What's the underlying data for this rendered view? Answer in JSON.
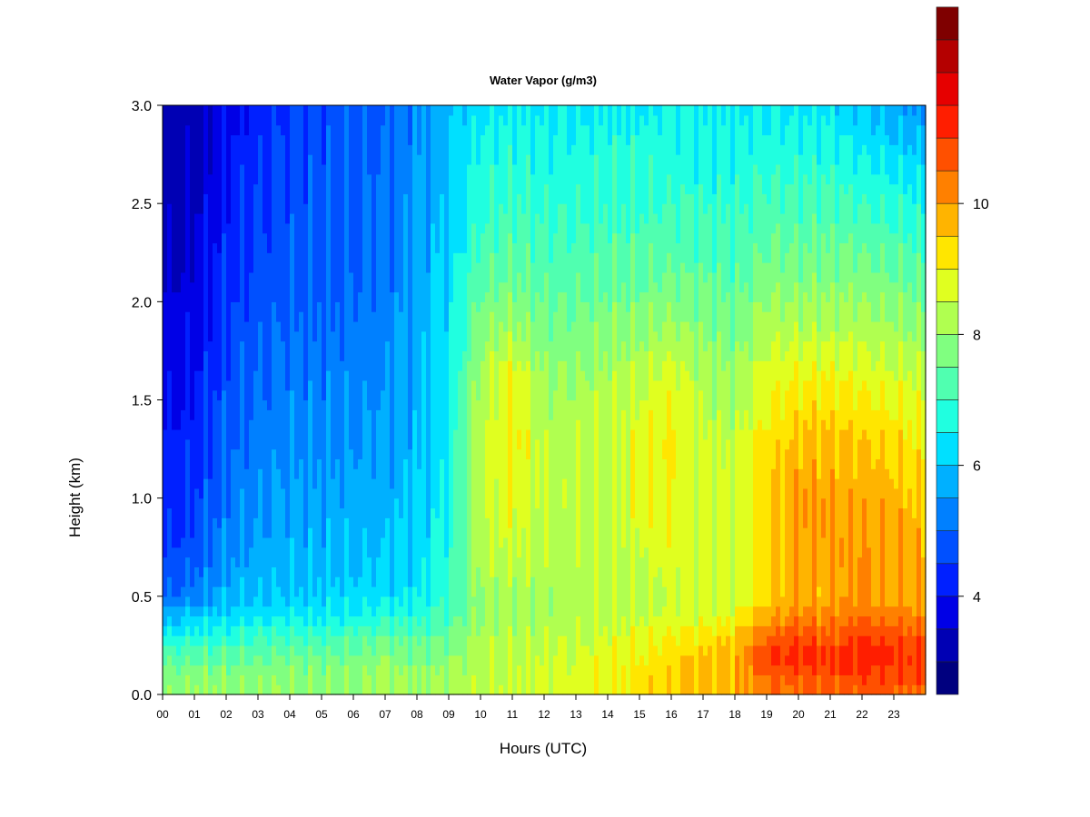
{
  "chart_data": {
    "type": "heatmap",
    "title": "Water Vapor (g/m3)",
    "xlabel": "Hours (UTC)",
    "ylabel": "Height (km)",
    "xlim": [
      0,
      24
    ],
    "ylim": [
      0.0,
      3.0
    ],
    "x_ticks": [
      "00",
      "01",
      "02",
      "03",
      "04",
      "05",
      "06",
      "07",
      "08",
      "09",
      "10",
      "11",
      "12",
      "13",
      "14",
      "15",
      "16",
      "17",
      "18",
      "19",
      "20",
      "21",
      "22",
      "23"
    ],
    "y_ticks": [
      "0.0",
      "0.5",
      "1.0",
      "1.5",
      "2.0",
      "2.5",
      "3.0"
    ],
    "colorbar": {
      "range": [
        2.5,
        11.5
      ],
      "step": 0.5,
      "tick_labels": [
        "4",
        "6",
        "8",
        "10"
      ],
      "tick_values": [
        4,
        6,
        8,
        10
      ],
      "colors": [
        "#00007F",
        "#0000B4",
        "#0000E6",
        "#0020FF",
        "#0050FF",
        "#0080FF",
        "#00B0FF",
        "#00E0FF",
        "#20FFE0",
        "#50FFB0",
        "#80FF80",
        "#B0FF50",
        "#E0FF20",
        "#FFE600",
        "#FFB400",
        "#FF8000",
        "#FF5000",
        "#FF1E00",
        "#E60000",
        "#B40000",
        "#7F0000"
      ]
    },
    "profiles": {
      "heights_km": [
        0.0,
        0.1,
        0.2,
        0.3,
        0.4,
        0.5,
        0.7,
        1.0,
        1.3,
        1.6,
        1.9,
        2.2,
        2.6,
        3.0
      ],
      "rows": [
        {
          "hour": 0.0,
          "values": [
            7.8,
            7.6,
            7.2,
            6.5,
            5.8,
            5.0,
            4.5,
            4.2,
            4.0,
            3.8,
            3.6,
            3.4,
            3.2,
            3.0
          ]
        },
        {
          "hour": 1.0,
          "values": [
            8.2,
            7.8,
            7.3,
            6.8,
            6.0,
            5.3,
            4.8,
            4.5,
            4.3,
            4.0,
            3.8,
            3.6,
            3.4,
            3.2
          ]
        },
        {
          "hour": 2.0,
          "values": [
            8.0,
            7.8,
            7.4,
            6.8,
            6.2,
            5.8,
            5.4,
            5.1,
            4.9,
            4.7,
            4.5,
            4.3,
            4.1,
            3.8
          ]
        },
        {
          "hour": 3.0,
          "values": [
            8.0,
            7.8,
            7.4,
            7.0,
            6.4,
            6.0,
            5.7,
            5.4,
            5.2,
            5.0,
            4.8,
            4.6,
            4.5,
            4.2
          ]
        },
        {
          "hour": 4.0,
          "values": [
            8.0,
            7.8,
            7.6,
            7.0,
            6.4,
            6.0,
            5.8,
            5.6,
            5.4,
            5.2,
            5.0,
            4.8,
            4.7,
            4.5
          ]
        },
        {
          "hour": 5.0,
          "values": [
            8.0,
            7.8,
            7.6,
            7.0,
            6.4,
            6.1,
            5.8,
            5.6,
            5.4,
            5.2,
            5.0,
            4.9,
            4.8,
            4.6
          ]
        },
        {
          "hour": 6.0,
          "values": [
            8.0,
            7.8,
            7.6,
            7.2,
            6.6,
            6.2,
            5.9,
            5.7,
            5.5,
            5.3,
            5.1,
            5.0,
            4.9,
            4.8
          ]
        },
        {
          "hour": 7.0,
          "values": [
            8.4,
            8.2,
            7.9,
            7.4,
            6.8,
            6.3,
            6.0,
            5.8,
            5.6,
            5.4,
            5.3,
            5.1,
            5.0,
            4.9
          ]
        },
        {
          "hour": 8.0,
          "values": [
            8.0,
            7.9,
            7.6,
            7.3,
            6.8,
            6.4,
            6.2,
            6.0,
            5.9,
            5.8,
            5.7,
            5.6,
            5.5,
            5.4
          ]
        },
        {
          "hour": 9.0,
          "values": [
            8.2,
            8.0,
            7.8,
            7.5,
            7.2,
            7.0,
            6.8,
            6.6,
            6.5,
            6.4,
            6.3,
            6.2,
            6.0,
            5.8
          ]
        },
        {
          "hour": 10.0,
          "values": [
            8.4,
            8.4,
            8.3,
            8.2,
            8.0,
            8.0,
            8.3,
            8.5,
            8.4,
            8.2,
            7.8,
            7.2,
            6.8,
            6.4
          ]
        },
        {
          "hour": 11.0,
          "values": [
            8.6,
            8.5,
            8.4,
            8.3,
            8.1,
            8.1,
            8.5,
            8.9,
            9.2,
            9.0,
            8.0,
            7.4,
            6.9,
            6.5
          ]
        },
        {
          "hour": 12.0,
          "values": [
            8.5,
            8.5,
            8.5,
            8.3,
            8.2,
            8.2,
            8.3,
            8.4,
            8.3,
            8.0,
            7.6,
            7.2,
            6.8,
            6.4
          ]
        },
        {
          "hour": 13.0,
          "values": [
            8.8,
            8.7,
            8.6,
            8.4,
            8.3,
            8.2,
            8.3,
            8.4,
            8.4,
            8.0,
            7.6,
            7.2,
            6.8,
            6.4
          ]
        },
        {
          "hour": 14.0,
          "values": [
            9.0,
            8.9,
            8.8,
            8.6,
            8.4,
            8.3,
            8.4,
            8.5,
            8.5,
            8.2,
            7.8,
            7.3,
            6.9,
            6.5
          ]
        },
        {
          "hour": 15.0,
          "values": [
            9.2,
            9.2,
            9.0,
            8.8,
            8.5,
            8.4,
            8.5,
            8.8,
            8.8,
            8.4,
            7.8,
            7.3,
            6.9,
            6.5
          ]
        },
        {
          "hour": 16.0,
          "values": [
            9.4,
            9.4,
            9.3,
            9.0,
            8.6,
            8.5,
            8.8,
            9.0,
            9.1,
            8.8,
            8.0,
            7.4,
            6.9,
            6.5
          ]
        },
        {
          "hour": 17.0,
          "values": [
            9.6,
            9.6,
            9.5,
            9.2,
            8.7,
            8.5,
            8.6,
            8.6,
            8.5,
            8.2,
            7.8,
            7.3,
            6.8,
            6.4
          ]
        },
        {
          "hour": 18.0,
          "values": [
            9.8,
            9.8,
            9.7,
            9.4,
            8.9,
            8.6,
            8.6,
            8.6,
            8.4,
            8.0,
            7.6,
            7.2,
            6.8,
            6.4
          ]
        },
        {
          "hour": 19.0,
          "values": [
            10.3,
            10.6,
            11.0,
            10.5,
            9.8,
            9.4,
            9.4,
            9.4,
            9.2,
            8.8,
            8.2,
            7.6,
            7.0,
            6.4
          ]
        },
        {
          "hour": 20.0,
          "values": [
            10.4,
            10.8,
            11.2,
            10.8,
            10.2,
            9.8,
            9.9,
            10.0,
            9.6,
            9.0,
            8.2,
            7.6,
            7.0,
            6.4
          ]
        },
        {
          "hour": 21.0,
          "values": [
            10.5,
            10.8,
            11.0,
            10.6,
            10.2,
            9.8,
            9.9,
            9.9,
            9.6,
            9.0,
            8.2,
            7.6,
            7.0,
            6.3
          ]
        },
        {
          "hour": 22.0,
          "values": [
            10.6,
            11.0,
            11.3,
            11.0,
            10.4,
            10.0,
            10.0,
            9.9,
            9.5,
            8.9,
            8.2,
            7.6,
            6.8,
            6.0
          ]
        },
        {
          "hour": 23.0,
          "values": [
            10.5,
            10.9,
            11.2,
            10.8,
            10.3,
            9.9,
            9.9,
            9.7,
            9.3,
            8.7,
            8.0,
            7.4,
            6.6,
            5.6
          ]
        },
        {
          "hour": 24.0,
          "values": [
            10.4,
            10.8,
            11.0,
            10.6,
            10.2,
            9.8,
            9.7,
            9.5,
            9.0,
            8.5,
            7.8,
            7.2,
            6.4,
            5.4
          ]
        }
      ]
    },
    "grid": false,
    "legend": "right colorbar"
  }
}
